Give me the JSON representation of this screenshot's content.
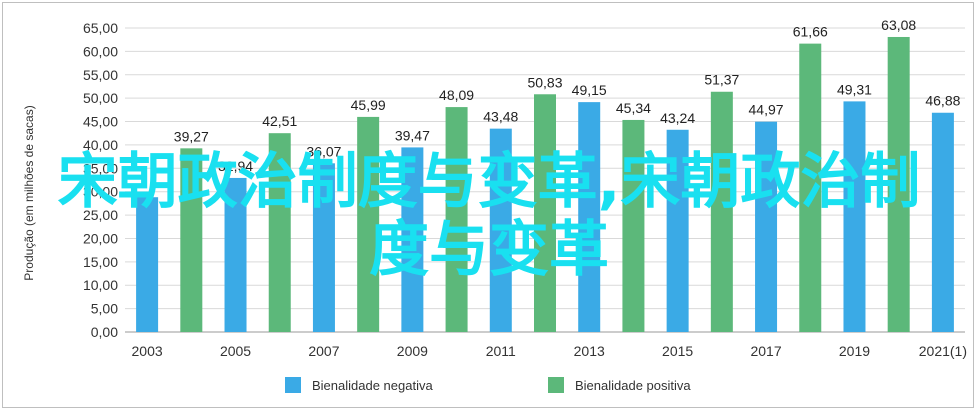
{
  "chart_data": {
    "type": "bar",
    "title": "",
    "xlabel": "",
    "ylabel": "Produção (em milhões de sacas)",
    "ylim": [
      0,
      65
    ],
    "yticks": [
      "0,00",
      "5,00",
      "10,00",
      "15,00",
      "20,00",
      "25,00",
      "30,00",
      "35,00",
      "40,00",
      "45,00",
      "50,00",
      "55,00",
      "60,00",
      "65,00"
    ],
    "x_tick_labels": [
      "2003",
      "2005",
      "2007",
      "2009",
      "2011",
      "2013",
      "2015",
      "2017",
      "2019",
      "2021(1)"
    ],
    "grid": true,
    "legend_position": "bottom",
    "series": [
      {
        "name": "Bienalidade negativa",
        "color": "#3aaae6",
        "points": [
          {
            "x": 2003,
            "value": 28.82,
            "label": ""
          },
          {
            "x": 2005,
            "value": 32.94,
            "label": "32,94"
          },
          {
            "x": 2007,
            "value": 36.07,
            "label": "36,07"
          },
          {
            "x": 2009,
            "value": 39.47,
            "label": "39,47"
          },
          {
            "x": 2011,
            "value": 43.48,
            "label": "43,48"
          },
          {
            "x": 2013,
            "value": 49.15,
            "label": "49,15"
          },
          {
            "x": 2015,
            "value": 43.24,
            "label": "43,24"
          },
          {
            "x": 2017,
            "value": 44.97,
            "label": "44,97"
          },
          {
            "x": 2019,
            "value": 49.31,
            "label": "49,31"
          },
          {
            "x": 2021,
            "value": 46.88,
            "label": "46,88"
          }
        ]
      },
      {
        "name": "Bienalidade positiva",
        "color": "#5cb87a",
        "points": [
          {
            "x": 2004,
            "value": 39.27,
            "label": "39,27"
          },
          {
            "x": 2006,
            "value": 42.51,
            "label": "42,51"
          },
          {
            "x": 2008,
            "value": 45.99,
            "label": "45,99"
          },
          {
            "x": 2010,
            "value": 48.09,
            "label": "48,09"
          },
          {
            "x": 2012,
            "value": 50.83,
            "label": "50,83"
          },
          {
            "x": 2014,
            "value": 45.34,
            "label": "45,34"
          },
          {
            "x": 2016,
            "value": 51.37,
            "label": "51,37"
          },
          {
            "x": 2018,
            "value": 61.66,
            "label": "61,66"
          },
          {
            "x": 2020,
            "value": 63.08,
            "label": "63,08"
          }
        ]
      }
    ]
  },
  "overlay": {
    "line1": "宋朝政治制度与变革,宋朝政治制",
    "line2": "度与变革",
    "color": "#19e0f0"
  }
}
